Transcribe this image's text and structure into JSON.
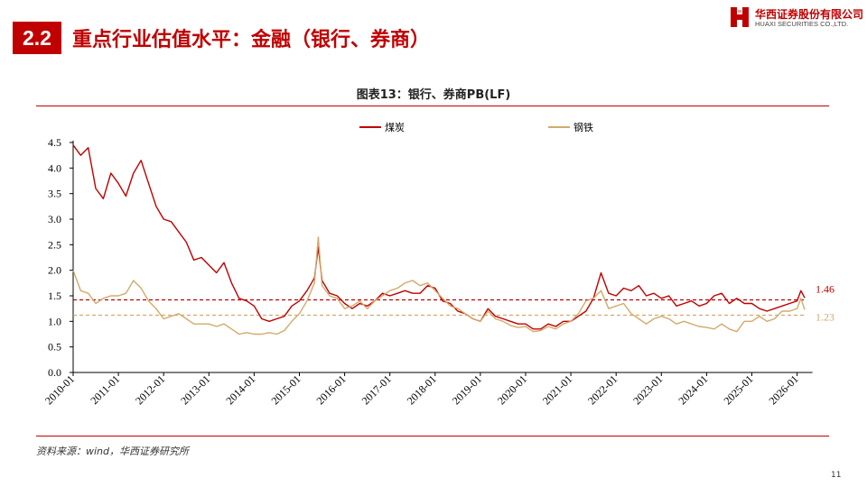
{
  "header": {
    "section_number": "2.2",
    "title": "重点行业估值水平：金融（银行、券商）",
    "logo_cn": "华西证券股份有限公司",
    "logo_en": "HUAXI SECURITIES CO.,LTD."
  },
  "chart_title": "图表13：银行、券商PB(LF)",
  "footer": {
    "source": "资料来源：wind，华西证券研究所",
    "page_number": "11"
  },
  "colors": {
    "brand": "#c00000",
    "series_1": "#c00000",
    "series_2": "#d2aa6c"
  },
  "chart_data": {
    "type": "line",
    "x_tick_labels": [
      "2010-01",
      "2011-01",
      "2012-01",
      "2013-01",
      "2014-01",
      "2015-01",
      "2016-01",
      "2017-01",
      "2018-01",
      "2019-01",
      "2020-01",
      "2021-01",
      "2022-01",
      "2023-01",
      "2024-01",
      "2025-01",
      "2026-01"
    ],
    "y_ticks": [
      0.0,
      0.5,
      1.0,
      1.5,
      2.0,
      2.5,
      3.0,
      3.5,
      4.0,
      4.5
    ],
    "y_tick_labels": [
      "0.0",
      "0.5",
      "1.0",
      "1.5",
      "2.0",
      "2.5",
      "3.0",
      "3.5",
      "4.0",
      "4.5"
    ],
    "ylim": [
      0,
      4.5
    ],
    "grid": false,
    "legend_position": "top",
    "series": [
      {
        "name": "煤炭",
        "color": "#c00000",
        "current_label": "1.46",
        "reference_line": 1.42,
        "points": [
          [
            "2010-01",
            4.45
          ],
          [
            "2010-03",
            4.25
          ],
          [
            "2010-05",
            4.4
          ],
          [
            "2010-07",
            3.6
          ],
          [
            "2010-09",
            3.4
          ],
          [
            "2010-11",
            3.9
          ],
          [
            "2011-01",
            3.7
          ],
          [
            "2011-03",
            3.45
          ],
          [
            "2011-05",
            3.9
          ],
          [
            "2011-07",
            4.15
          ],
          [
            "2011-09",
            3.7
          ],
          [
            "2011-11",
            3.25
          ],
          [
            "2012-01",
            3.0
          ],
          [
            "2012-03",
            2.95
          ],
          [
            "2012-05",
            2.75
          ],
          [
            "2012-07",
            2.55
          ],
          [
            "2012-09",
            2.2
          ],
          [
            "2012-11",
            2.25
          ],
          [
            "2013-01",
            2.1
          ],
          [
            "2013-03",
            1.95
          ],
          [
            "2013-05",
            2.15
          ],
          [
            "2013-07",
            1.75
          ],
          [
            "2013-09",
            1.45
          ],
          [
            "2013-11",
            1.4
          ],
          [
            "2014-01",
            1.3
          ],
          [
            "2014-03",
            1.05
          ],
          [
            "2014-05",
            1.0
          ],
          [
            "2014-07",
            1.05
          ],
          [
            "2014-09",
            1.1
          ],
          [
            "2014-11",
            1.3
          ],
          [
            "2015-01",
            1.4
          ],
          [
            "2015-03",
            1.6
          ],
          [
            "2015-05",
            1.85
          ],
          [
            "2015-06",
            2.45
          ],
          [
            "2015-07",
            1.8
          ],
          [
            "2015-09",
            1.55
          ],
          [
            "2015-11",
            1.5
          ],
          [
            "2016-01",
            1.35
          ],
          [
            "2016-03",
            1.25
          ],
          [
            "2016-05",
            1.35
          ],
          [
            "2016-07",
            1.3
          ],
          [
            "2016-09",
            1.4
          ],
          [
            "2016-11",
            1.55
          ],
          [
            "2017-01",
            1.5
          ],
          [
            "2017-03",
            1.55
          ],
          [
            "2017-05",
            1.6
          ],
          [
            "2017-07",
            1.55
          ],
          [
            "2017-09",
            1.55
          ],
          [
            "2017-11",
            1.7
          ],
          [
            "2018-01",
            1.65
          ],
          [
            "2018-03",
            1.4
          ],
          [
            "2018-05",
            1.35
          ],
          [
            "2018-07",
            1.2
          ],
          [
            "2018-09",
            1.15
          ],
          [
            "2018-11",
            1.05
          ],
          [
            "2019-01",
            1.0
          ],
          [
            "2019-03",
            1.25
          ],
          [
            "2019-05",
            1.1
          ],
          [
            "2019-07",
            1.05
          ],
          [
            "2019-09",
            1.0
          ],
          [
            "2019-11",
            0.95
          ],
          [
            "2020-01",
            0.95
          ],
          [
            "2020-03",
            0.85
          ],
          [
            "2020-05",
            0.85
          ],
          [
            "2020-07",
            0.95
          ],
          [
            "2020-09",
            0.9
          ],
          [
            "2020-11",
            1.0
          ],
          [
            "2021-01",
            1.0
          ],
          [
            "2021-03",
            1.1
          ],
          [
            "2021-05",
            1.2
          ],
          [
            "2021-07",
            1.45
          ],
          [
            "2021-09",
            1.95
          ],
          [
            "2021-11",
            1.55
          ],
          [
            "2022-01",
            1.5
          ],
          [
            "2022-03",
            1.65
          ],
          [
            "2022-05",
            1.6
          ],
          [
            "2022-07",
            1.7
          ],
          [
            "2022-09",
            1.5
          ],
          [
            "2022-11",
            1.55
          ],
          [
            "2023-01",
            1.45
          ],
          [
            "2023-03",
            1.5
          ],
          [
            "2023-05",
            1.3
          ],
          [
            "2023-07",
            1.35
          ],
          [
            "2023-09",
            1.4
          ],
          [
            "2023-11",
            1.3
          ],
          [
            "2024-01",
            1.35
          ],
          [
            "2024-03",
            1.5
          ],
          [
            "2024-05",
            1.55
          ],
          [
            "2024-07",
            1.35
          ],
          [
            "2024-09",
            1.45
          ],
          [
            "2024-11",
            1.35
          ],
          [
            "2025-01",
            1.35
          ],
          [
            "2025-03",
            1.25
          ],
          [
            "2025-05",
            1.2
          ],
          [
            "2025-07",
            1.25
          ],
          [
            "2025-09",
            1.3
          ],
          [
            "2025-11",
            1.35
          ],
          [
            "2026-01",
            1.4
          ],
          [
            "2026-02",
            1.6
          ],
          [
            "2026-03",
            1.46
          ]
        ]
      },
      {
        "name": "钢铁",
        "color": "#d2aa6c",
        "current_label": "1.23",
        "reference_line": 1.12,
        "points": [
          [
            "2010-01",
            2.0
          ],
          [
            "2010-03",
            1.6
          ],
          [
            "2010-05",
            1.55
          ],
          [
            "2010-07",
            1.35
          ],
          [
            "2010-09",
            1.45
          ],
          [
            "2010-11",
            1.5
          ],
          [
            "2011-01",
            1.5
          ],
          [
            "2011-03",
            1.55
          ],
          [
            "2011-05",
            1.8
          ],
          [
            "2011-07",
            1.65
          ],
          [
            "2011-09",
            1.4
          ],
          [
            "2011-11",
            1.25
          ],
          [
            "2012-01",
            1.05
          ],
          [
            "2012-03",
            1.1
          ],
          [
            "2012-05",
            1.15
          ],
          [
            "2012-07",
            1.05
          ],
          [
            "2012-09",
            0.95
          ],
          [
            "2012-11",
            0.95
          ],
          [
            "2013-01",
            0.95
          ],
          [
            "2013-03",
            0.9
          ],
          [
            "2013-05",
            0.95
          ],
          [
            "2013-07",
            0.85
          ],
          [
            "2013-09",
            0.75
          ],
          [
            "2013-11",
            0.78
          ],
          [
            "2014-01",
            0.75
          ],
          [
            "2014-03",
            0.75
          ],
          [
            "2014-05",
            0.78
          ],
          [
            "2014-07",
            0.75
          ],
          [
            "2014-09",
            0.82
          ],
          [
            "2014-11",
            1.0
          ],
          [
            "2015-01",
            1.15
          ],
          [
            "2015-03",
            1.4
          ],
          [
            "2015-05",
            1.75
          ],
          [
            "2015-06",
            2.65
          ],
          [
            "2015-07",
            1.7
          ],
          [
            "2015-09",
            1.5
          ],
          [
            "2015-11",
            1.45
          ],
          [
            "2016-01",
            1.25
          ],
          [
            "2016-03",
            1.3
          ],
          [
            "2016-05",
            1.4
          ],
          [
            "2016-07",
            1.25
          ],
          [
            "2016-09",
            1.4
          ],
          [
            "2016-11",
            1.5
          ],
          [
            "2017-01",
            1.6
          ],
          [
            "2017-03",
            1.65
          ],
          [
            "2017-05",
            1.75
          ],
          [
            "2017-07",
            1.8
          ],
          [
            "2017-09",
            1.7
          ],
          [
            "2017-11",
            1.75
          ],
          [
            "2018-01",
            1.6
          ],
          [
            "2018-03",
            1.45
          ],
          [
            "2018-05",
            1.3
          ],
          [
            "2018-07",
            1.25
          ],
          [
            "2018-09",
            1.15
          ],
          [
            "2018-11",
            1.05
          ],
          [
            "2019-01",
            1.0
          ],
          [
            "2019-03",
            1.2
          ],
          [
            "2019-05",
            1.05
          ],
          [
            "2019-07",
            1.0
          ],
          [
            "2019-09",
            0.92
          ],
          [
            "2019-11",
            0.88
          ],
          [
            "2020-01",
            0.9
          ],
          [
            "2020-03",
            0.8
          ],
          [
            "2020-05",
            0.82
          ],
          [
            "2020-07",
            0.9
          ],
          [
            "2020-09",
            0.85
          ],
          [
            "2020-11",
            0.95
          ],
          [
            "2021-01",
            1.0
          ],
          [
            "2021-03",
            1.15
          ],
          [
            "2021-05",
            1.4
          ],
          [
            "2021-07",
            1.45
          ],
          [
            "2021-09",
            1.6
          ],
          [
            "2021-11",
            1.25
          ],
          [
            "2022-01",
            1.3
          ],
          [
            "2022-03",
            1.35
          ],
          [
            "2022-05",
            1.15
          ],
          [
            "2022-07",
            1.05
          ],
          [
            "2022-09",
            0.95
          ],
          [
            "2022-11",
            1.05
          ],
          [
            "2023-01",
            1.1
          ],
          [
            "2023-03",
            1.05
          ],
          [
            "2023-05",
            0.95
          ],
          [
            "2023-07",
            1.0
          ],
          [
            "2023-09",
            0.95
          ],
          [
            "2023-11",
            0.9
          ],
          [
            "2024-01",
            0.88
          ],
          [
            "2024-03",
            0.85
          ],
          [
            "2024-05",
            0.95
          ],
          [
            "2024-07",
            0.85
          ],
          [
            "2024-09",
            0.8
          ],
          [
            "2024-11",
            1.0
          ],
          [
            "2025-01",
            1.0
          ],
          [
            "2025-03",
            1.1
          ],
          [
            "2025-05",
            1.0
          ],
          [
            "2025-07",
            1.05
          ],
          [
            "2025-09",
            1.2
          ],
          [
            "2025-11",
            1.2
          ],
          [
            "2026-01",
            1.25
          ],
          [
            "2026-02",
            1.45
          ],
          [
            "2026-03",
            1.23
          ]
        ]
      }
    ]
  }
}
